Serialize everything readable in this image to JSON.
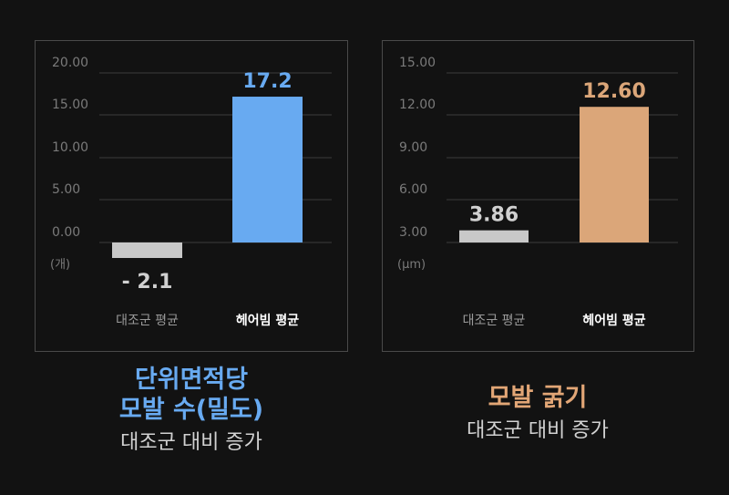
{
  "colors": {
    "background": "#121212",
    "panel_border": "#4a4a4a",
    "grid": "#3c3c3c",
    "tick_text": "#7a7a7a",
    "baseline_bar": "#c8c8c8",
    "blue_bar": "#68aaf1",
    "orange_bar": "#dba679",
    "label_text": "#d0d0d0"
  },
  "chart_data": [
    {
      "type": "bar",
      "categories": [
        "대조군 평균",
        "헤어빔 평균"
      ],
      "values": [
        -2.1,
        17.2
      ],
      "value_labels": [
        "- 2.1",
        "17.2"
      ],
      "yticks": [
        "20.00",
        "15.00",
        "10.00",
        "5.00",
        "0.00"
      ],
      "ytick_values": [
        20,
        15,
        10,
        5,
        0
      ],
      "ylim": [
        -2.1,
        20
      ],
      "unit": "(개)",
      "caption_lines": [
        "단위면적당",
        "모발 수(밀도)"
      ],
      "caption_sub": "대조군 대비 증가",
      "grid": true
    },
    {
      "type": "bar",
      "categories": [
        "대조군 평균",
        "헤어빔 평균"
      ],
      "values": [
        3.86,
        12.6
      ],
      "value_labels": [
        "3.86",
        "12.60"
      ],
      "yticks": [
        "15.00",
        "12.00",
        "9.00",
        "6.00",
        "3.00"
      ],
      "ytick_values": [
        15,
        12,
        9,
        6,
        3
      ],
      "ylim": [
        3,
        15
      ],
      "unit": "(μm)",
      "caption_lines": [
        "모발 굵기"
      ],
      "caption_sub": "대조군 대비 증가",
      "grid": true
    }
  ]
}
